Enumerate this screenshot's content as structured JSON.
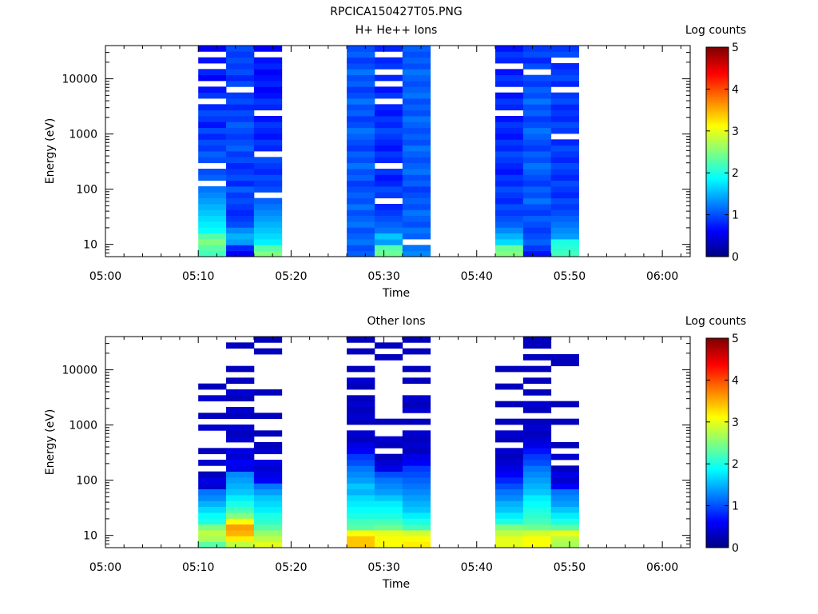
{
  "figure": {
    "title": "RPCICA150427T05.PNG"
  },
  "chart_data": [
    {
      "type": "heatmap",
      "title": "H+ He++ Ions",
      "xlabel": "Time",
      "ylabel": "Energy (eV)",
      "x_ticks": [
        "05:00",
        "05:10",
        "05:20",
        "05:30",
        "05:40",
        "05:50",
        "06:00"
      ],
      "x_range": [
        "05:00",
        "06:03"
      ],
      "y_ticks": [
        "10",
        "100",
        "1000",
        "10000"
      ],
      "y_range": [
        6,
        40000
      ],
      "y_scale": "log",
      "colorbar": {
        "label": "Log counts",
        "range": [
          0,
          5
        ],
        "ticks": [
          "0",
          "1",
          "2",
          "3",
          "4",
          "5"
        ],
        "colormap": "jet"
      },
      "time_bins": [
        {
          "start": "05:10",
          "end": "05:13",
          "log_counts_low_to_high": [
            2.2,
            2.3,
            2.5,
            2.3,
            1.9,
            1.8,
            1.7,
            1.6,
            1.5,
            1.4,
            1.3,
            1.2,
            null,
            1.1,
            1.0,
            null,
            1.0,
            1.1,
            0.9,
            1.0,
            0.8,
            1.0,
            0.7,
            0.9,
            1.0,
            0.8,
            null,
            0.9,
            0.7,
            null,
            0.6,
            0.8,
            null,
            0.7,
            null,
            0.6
          ]
        },
        {
          "start": "05:13",
          "end": "05:16",
          "log_counts_low_to_high": [
            0.6,
            0.8,
            1.4,
            1.5,
            1.3,
            1.0,
            0.9,
            0.8,
            0.9,
            1.0,
            0.9,
            1.1,
            0.8,
            1.0,
            0.9,
            0.8,
            1.0,
            0.9,
            1.1,
            1.0,
            0.9,
            1.0,
            1.1,
            0.9,
            1.0,
            0.8,
            1.0,
            0.9,
            null,
            1.0,
            0.8,
            1.0,
            0.9,
            1.0,
            0.9,
            1.0
          ]
        },
        {
          "start": "05:16",
          "end": "05:19",
          "log_counts_low_to_high": [
            2.5,
            2.3,
            1.8,
            1.7,
            1.6,
            1.5,
            1.4,
            1.3,
            1.2,
            1.1,
            null,
            1.0,
            0.9,
            1.0,
            0.8,
            0.9,
            1.0,
            null,
            0.8,
            0.9,
            0.7,
            0.8,
            0.9,
            0.7,
            null,
            0.8,
            0.9,
            0.7,
            0.6,
            0.8,
            0.7,
            0.6,
            0.8,
            0.7,
            null,
            0.6
          ]
        },
        {
          "start": "05:26",
          "end": "05:29",
          "log_counts_low_to_high": [
            1.1,
            1.0,
            1.2,
            1.1,
            1.0,
            1.2,
            1.1,
            1.0,
            1.2,
            1.0,
            1.1,
            1.0,
            0.9,
            1.1,
            1.0,
            1.2,
            1.0,
            1.1,
            0.9,
            1.0,
            1.1,
            1.2,
            1.0,
            0.9,
            1.1,
            1.0,
            1.2,
            1.0,
            0.9,
            1.1,
            1.0,
            1.2,
            1.0,
            0.9,
            1.1,
            1.0
          ]
        },
        {
          "start": "05:29",
          "end": "05:32",
          "log_counts_low_to_high": [
            2.4,
            2.3,
            1.4,
            1.6,
            1.2,
            1.1,
            1.0,
            0.9,
            0.8,
            null,
            0.9,
            1.0,
            0.8,
            0.7,
            0.9,
            null,
            0.8,
            0.9,
            0.7,
            0.8,
            0.9,
            1.0,
            0.8,
            0.9,
            0.7,
            0.8,
            null,
            0.9,
            0.7,
            null,
            0.8,
            null,
            0.9,
            0.8,
            null,
            0.8
          ]
        },
        {
          "start": "05:32",
          "end": "05:35",
          "log_counts_low_to_high": [
            1.3,
            1.2,
            null,
            1.1,
            1.2,
            1.0,
            1.1,
            1.2,
            1.0,
            1.1,
            1.0,
            0.9,
            1.1,
            1.0,
            1.2,
            1.1,
            1.0,
            1.1,
            1.2,
            1.0,
            1.1,
            1.0,
            1.1,
            1.2,
            1.0,
            1.1,
            1.0,
            1.2,
            1.1,
            1.0,
            1.1,
            1.2,
            1.0,
            1.1,
            1.0,
            1.1
          ]
        },
        {
          "start": "05:42",
          "end": "05:45",
          "log_counts_low_to_high": [
            2.5,
            2.4,
            1.7,
            1.5,
            1.3,
            1.1,
            1.0,
            0.9,
            1.0,
            0.8,
            0.9,
            1.0,
            0.8,
            0.9,
            0.7,
            0.8,
            0.9,
            1.0,
            0.8,
            0.9,
            0.7,
            0.8,
            0.9,
            0.7,
            null,
            0.8,
            0.9,
            0.7,
            null,
            0.8,
            0.9,
            0.7,
            null,
            0.8,
            0.9,
            0.7
          ]
        },
        {
          "start": "05:45",
          "end": "05:48",
          "log_counts_low_to_high": [
            0.7,
            0.9,
            1.1,
            1.0,
            0.9,
            1.0,
            1.1,
            0.9,
            1.0,
            1.2,
            1.0,
            1.1,
            0.9,
            1.0,
            1.1,
            1.2,
            1.0,
            1.1,
            0.9,
            1.0,
            1.1,
            1.2,
            1.0,
            0.9,
            1.1,
            1.0,
            1.2,
            1.0,
            1.1,
            0.9,
            1.0,
            null,
            1.0,
            0.8,
            1.0,
            0.9
          ]
        },
        {
          "start": "05:48",
          "end": "05:51",
          "log_counts_low_to_high": [
            2.2,
            2.1,
            2.0,
            1.4,
            1.3,
            1.2,
            1.1,
            1.0,
            0.9,
            1.0,
            0.8,
            0.9,
            1.0,
            0.8,
            0.9,
            1.0,
            0.8,
            0.9,
            1.0,
            0.8,
            null,
            0.9,
            1.0,
            0.8,
            0.9,
            0.8,
            1.0,
            0.9,
            null,
            0.8,
            1.0,
            0.9,
            0.8,
            null,
            1.0,
            0.9
          ]
        }
      ]
    },
    {
      "type": "heatmap",
      "title": "Other Ions",
      "xlabel": "Time",
      "ylabel": "Energy (eV)",
      "x_ticks": [
        "05:00",
        "05:10",
        "05:20",
        "05:30",
        "05:40",
        "05:50",
        "06:00"
      ],
      "x_range": [
        "05:00",
        "06:03"
      ],
      "y_ticks": [
        "10",
        "100",
        "1000",
        "10000"
      ],
      "y_range": [
        6,
        40000
      ],
      "y_scale": "log",
      "colorbar": {
        "label": "Log counts",
        "range": [
          0,
          5
        ],
        "ticks": [
          "0",
          "1",
          "2",
          "3",
          "4",
          "5"
        ],
        "colormap": "jet"
      },
      "time_bins": [
        {
          "start": "05:10",
          "end": "05:13",
          "log_counts_low_to_high": [
            2.3,
            2.7,
            2.8,
            2.5,
            2.0,
            1.9,
            1.7,
            1.5,
            1.3,
            1.2,
            0.4,
            0.5,
            0.3,
            null,
            0.4,
            null,
            0.3,
            null,
            null,
            null,
            0.4,
            null,
            0.3,
            null,
            null,
            0.4,
            null,
            0.3,
            null,
            null,
            null,
            null,
            null,
            null,
            null,
            null
          ]
        },
        {
          "start": "05:13",
          "end": "05:16",
          "log_counts_low_to_high": [
            2.8,
            3.2,
            3.5,
            3.6,
            3.1,
            2.5,
            2.2,
            2.0,
            1.8,
            1.6,
            1.5,
            1.4,
            1.3,
            0.5,
            0.6,
            0.4,
            0.5,
            null,
            0.4,
            0.3,
            0.4,
            null,
            0.3,
            0.4,
            null,
            0.3,
            0.4,
            null,
            0.3,
            null,
            0.3,
            null,
            null,
            null,
            0.3,
            null
          ]
        },
        {
          "start": "05:16",
          "end": "05:19",
          "log_counts_low_to_high": [
            3.0,
            2.8,
            2.6,
            2.3,
            2.1,
            2.0,
            1.8,
            1.7,
            1.6,
            1.4,
            1.2,
            0.6,
            0.5,
            0.4,
            0.5,
            null,
            0.4,
            0.3,
            null,
            0.3,
            null,
            null,
            0.3,
            null,
            null,
            null,
            0.3,
            null,
            null,
            null,
            null,
            null,
            null,
            0.3,
            null,
            0.3
          ]
        },
        {
          "start": "05:26",
          "end": "05:29",
          "log_counts_low_to_high": [
            3.4,
            3.4,
            3.1,
            2.3,
            2.2,
            2.0,
            1.9,
            1.8,
            1.7,
            1.5,
            1.6,
            1.4,
            1.3,
            1.2,
            1.0,
            0.9,
            0.6,
            0.5,
            0.3,
            0.4,
            null,
            0.3,
            0.4,
            0.3,
            0.4,
            0.3,
            null,
            0.3,
            0.4,
            null,
            0.3,
            null,
            null,
            0.3,
            null,
            0.3
          ]
        },
        {
          "start": "05:29",
          "end": "05:32",
          "log_counts_low_to_high": [
            3.1,
            3.1,
            3.0,
            2.4,
            2.2,
            2.0,
            1.9,
            1.8,
            1.6,
            1.4,
            1.3,
            1.2,
            1.0,
            0.5,
            0.4,
            0.3,
            null,
            0.3,
            0.4,
            null,
            null,
            0.3,
            null,
            null,
            null,
            null,
            null,
            null,
            null,
            null,
            null,
            null,
            0.3,
            null,
            0.3,
            null
          ]
        },
        {
          "start": "05:32",
          "end": "05:35",
          "log_counts_low_to_high": [
            3.2,
            3.1,
            2.9,
            2.2,
            2.0,
            1.8,
            1.6,
            1.5,
            1.4,
            1.3,
            1.2,
            1.1,
            1.0,
            0.9,
            0.6,
            0.5,
            0.3,
            0.4,
            0.3,
            0.4,
            null,
            0.3,
            null,
            0.4,
            0.3,
            0.4,
            null,
            null,
            0.3,
            null,
            0.3,
            null,
            null,
            0.3,
            null,
            0.3
          ]
        },
        {
          "start": "05:42",
          "end": "05:45",
          "log_counts_low_to_high": [
            3.0,
            3.0,
            2.8,
            2.5,
            2.0,
            1.8,
            1.6,
            1.5,
            1.3,
            1.2,
            1.0,
            0.8,
            0.6,
            0.5,
            0.4,
            0.3,
            0.4,
            null,
            0.3,
            0.4,
            null,
            0.3,
            null,
            null,
            0.3,
            null,
            null,
            0.3,
            null,
            null,
            0.3,
            null,
            null,
            null,
            null,
            null
          ]
        },
        {
          "start": "05:45",
          "end": "05:48",
          "log_counts_low_to_high": [
            3.1,
            3.1,
            2.9,
            2.4,
            2.2,
            2.1,
            2.0,
            1.9,
            1.8,
            1.6,
            1.5,
            1.4,
            1.3,
            1.2,
            1.0,
            0.9,
            0.7,
            0.5,
            0.4,
            0.3,
            0.4,
            0.3,
            null,
            0.3,
            0.4,
            null,
            0.3,
            null,
            0.3,
            null,
            0.3,
            null,
            0.3,
            null,
            0.3,
            0.3
          ]
        },
        {
          "start": "05:48",
          "end": "05:51",
          "log_counts_low_to_high": [
            2.7,
            2.8,
            3.0,
            2.3,
            2.0,
            1.8,
            1.6,
            1.4,
            1.3,
            1.2,
            0.6,
            0.4,
            0.5,
            0.3,
            null,
            0.4,
            null,
            0.3,
            null,
            null,
            null,
            0.3,
            null,
            null,
            0.3,
            null,
            null,
            null,
            null,
            null,
            null,
            0.3,
            0.3,
            null,
            null,
            null
          ]
        }
      ]
    }
  ]
}
